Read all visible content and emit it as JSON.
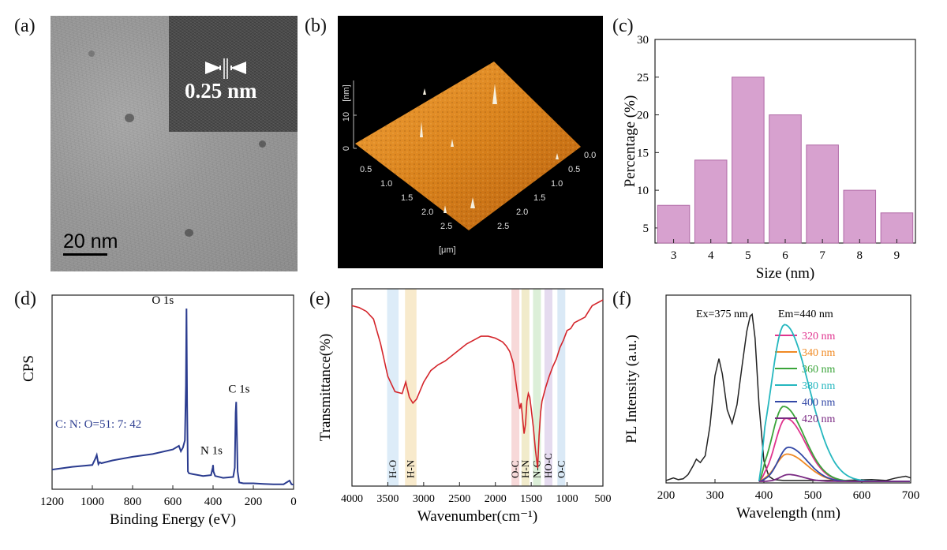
{
  "panels": {
    "a": "(a)",
    "b": "(b)",
    "c": "(c)",
    "d": "(d)",
    "e": "(e)",
    "f": "(f)"
  },
  "tem": {
    "scale_bar_label": "20 nm",
    "lattice_spacing_label": "0.25 nm"
  },
  "afm": {
    "z_axis_label": "[nm]",
    "z_ticks": [
      "10",
      "0"
    ],
    "xy_axis_label": "[μm]",
    "left_ticks": [
      "0.5",
      "1.0",
      "1.5",
      "2.0",
      "2.5"
    ],
    "right_ticks": [
      "0.0",
      "0.5",
      "1.0",
      "1.5",
      "2.0",
      "2.5"
    ],
    "surface_color": "#e08a1e"
  },
  "chart_data": [
    {
      "id": "c",
      "type": "bar",
      "categories": [
        "3",
        "4",
        "5",
        "6",
        "7",
        "8",
        "9"
      ],
      "values": [
        8,
        14,
        25,
        20,
        16,
        10,
        7
      ],
      "xlabel": "Size (nm)",
      "ylabel": "Percentage (%)",
      "ylim": [
        3,
        30
      ],
      "yticks": [
        5,
        10,
        15,
        20,
        25,
        30
      ],
      "bar_color": "#d7a1cf",
      "bar_edge": "#b06aa6"
    },
    {
      "id": "d",
      "type": "line",
      "xlabel": "Binding Energy (eV)",
      "ylabel": "CPS",
      "xlim": [
        1200,
        0
      ],
      "xticks": [
        1200,
        1000,
        800,
        600,
        400,
        200,
        0
      ],
      "ylim": [
        0,
        100
      ],
      "line_color": "#2b3c8f",
      "annotation": "C: N: O=51: 7: 42",
      "peaks": [
        {
          "label": "O 1s",
          "x": 532
        },
        {
          "label": "N 1s",
          "x": 400
        },
        {
          "label": "C 1s",
          "x": 285
        }
      ],
      "series": [
        {
          "x": [
            1200,
            1100,
            1000,
            985,
            978,
            970,
            963,
            955,
            900,
            800,
            700,
            600,
            570,
            560,
            550,
            540,
            535,
            532,
            529,
            525,
            520,
            500,
            450,
            410,
            402,
            400,
            398,
            390,
            350,
            300,
            292,
            288,
            285,
            282,
            278,
            270,
            250,
            200,
            150,
            100,
            50,
            20,
            10,
            0
          ],
          "y": [
            9,
            10.5,
            11.5,
            15,
            17,
            12,
            13,
            12.5,
            14,
            16,
            17.5,
            20,
            22,
            19,
            21,
            25,
            55,
            97,
            45,
            8,
            7,
            6.5,
            5.5,
            6,
            10,
            11.5,
            8,
            5.5,
            4.5,
            5,
            10,
            40,
            46,
            30,
            8,
            2,
            1.5,
            1.5,
            1.2,
            1,
            1,
            3,
            1,
            0.8
          ]
        }
      ]
    },
    {
      "id": "e",
      "type": "line",
      "xlabel": "Wavenumber(cm⁻¹)",
      "ylabel": "Transmittance(%)",
      "xlim": [
        4000,
        500
      ],
      "xticks": [
        4000,
        3500,
        3000,
        2500,
        2000,
        1500,
        1000,
        500
      ],
      "ylim": [
        0,
        100
      ],
      "line_color": "#d4252b",
      "bands": [
        {
          "label": "H-O",
          "center": 3430,
          "width": 160,
          "color": "#d7e9f7"
        },
        {
          "label": "H-N",
          "center": 3180,
          "width": 160,
          "color": "#f7e6c3"
        },
        {
          "label": "O-C",
          "center": 1720,
          "width": 110,
          "color": "#f6d2d2"
        },
        {
          "label": "H-N",
          "center": 1580,
          "width": 110,
          "color": "#efe8c2"
        },
        {
          "label": "N-C",
          "center": 1420,
          "width": 110,
          "color": "#d6ecd1"
        },
        {
          "label": "HO-C",
          "center": 1260,
          "width": 110,
          "color": "#e0d5ec"
        },
        {
          "label": "O-C",
          "center": 1080,
          "width": 110,
          "color": "#d4e5f4"
        }
      ],
      "series": [
        {
          "x": [
            4000,
            3900,
            3800,
            3700,
            3600,
            3500,
            3400,
            3300,
            3250,
            3200,
            3150,
            3100,
            3000,
            2900,
            2800,
            2700,
            2600,
            2500,
            2400,
            2300,
            2200,
            2100,
            2000,
            1900,
            1850,
            1800,
            1750,
            1700,
            1660,
            1640,
            1620,
            1600,
            1580,
            1560,
            1540,
            1520,
            1500,
            1470,
            1440,
            1410,
            1390,
            1370,
            1350,
            1300,
            1250,
            1200,
            1150,
            1100,
            1050,
            1000,
            950,
            900,
            850,
            800,
            750,
            700,
            650,
            600,
            550,
            500
          ],
          "y": [
            92,
            91,
            89,
            85,
            72,
            55,
            47,
            46,
            52,
            44,
            41,
            43,
            52,
            58,
            61,
            63,
            66,
            69,
            72,
            74,
            76,
            76,
            75,
            73,
            71,
            68,
            62,
            48,
            38,
            41,
            33,
            25,
            30,
            42,
            46,
            44,
            38,
            28,
            16,
            7,
            24,
            36,
            42,
            49,
            55,
            60,
            64,
            70,
            74,
            79,
            80,
            83,
            84,
            85,
            86,
            89,
            92,
            93,
            94,
            95
          ]
        }
      ]
    },
    {
      "id": "f",
      "type": "line",
      "xlabel": "Wavelength (nm)",
      "ylabel": "PL Intensity (a.u.)",
      "xlim": [
        200,
        700
      ],
      "xticks": [
        200,
        300,
        400,
        500,
        600,
        700
      ],
      "ylim": [
        0,
        100
      ],
      "annotations": [
        "Ex=375 nm",
        "Em=440 nm"
      ],
      "excitation": {
        "color": "#222222",
        "x": [
          200,
          215,
          225,
          235,
          245,
          255,
          262,
          270,
          280,
          290,
          300,
          308,
          315,
          325,
          335,
          345,
          355,
          365,
          372,
          376,
          382,
          390,
          400,
          410,
          420,
          440,
          460,
          500,
          560,
          620,
          650,
          670,
          690,
          700
        ],
        "y": [
          0.5,
          2,
          1,
          1.5,
          4,
          9,
          13,
          11,
          15,
          33,
          62,
          72,
          63,
          42,
          34,
          45,
          67,
          88,
          97,
          98,
          84,
          45,
          12,
          3,
          1,
          0.5,
          0.5,
          0.5,
          0.5,
          1,
          0.5,
          2,
          3,
          2
        ]
      },
      "series": [
        {
          "name": "320 nm",
          "color": "#e0338e",
          "peak": 445,
          "amp": 37,
          "sigma": 40
        },
        {
          "name": "340 nm",
          "color": "#f08a24",
          "peak": 447,
          "amp": 16,
          "sigma": 40
        },
        {
          "name": "360 nm",
          "color": "#3aa43a",
          "peak": 440,
          "amp": 44,
          "sigma": 42
        },
        {
          "name": "380 nm",
          "color": "#25b7bf",
          "peak": 442,
          "amp": 92,
          "sigma": 50
        },
        {
          "name": "400 nm",
          "color": "#3348a6",
          "peak": 450,
          "amp": 20,
          "sigma": 38
        },
        {
          "name": "420 nm",
          "color": "#7a2a83",
          "peak": 450,
          "amp": 4,
          "sigma": 30
        }
      ]
    }
  ]
}
